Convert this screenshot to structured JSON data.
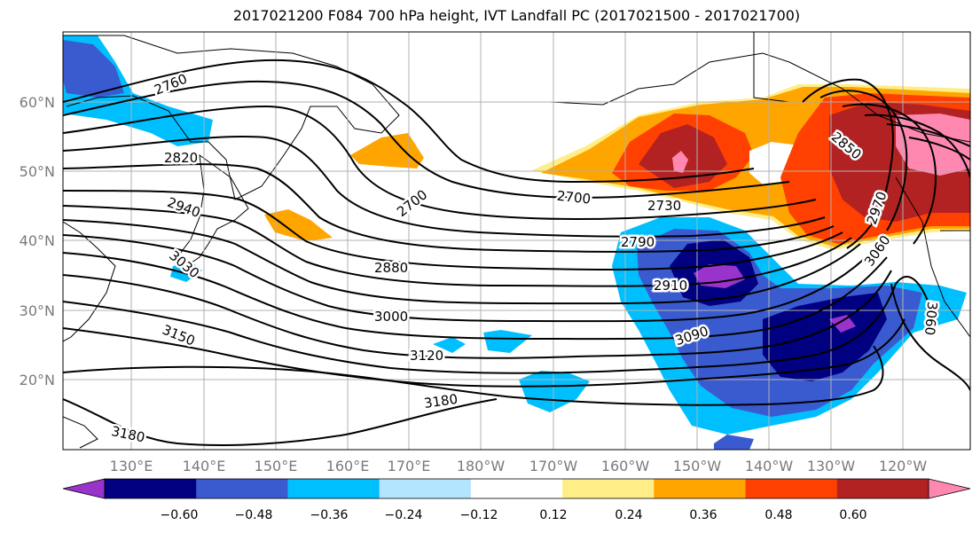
{
  "title": "2017021200 F084 700 hPa height, IVT Landfall PC (2017021500 - 2017021700)",
  "map": {
    "lat_labels": [
      "60°N",
      "50°N",
      "40°N",
      "30°N",
      "20°N"
    ],
    "lon_labels": [
      "130°E",
      "140°E",
      "150°E",
      "160°E",
      "170°E",
      "180°W",
      "170°W",
      "160°W",
      "150°W",
      "140°W",
      "130°W",
      "120°W"
    ],
    "contour_labels": [
      "2760",
      "2820",
      "2940",
      "3030",
      "2700",
      "2880",
      "3000",
      "3150",
      "3120",
      "3180",
      "3180",
      "2700",
      "2730",
      "2790",
      "2910",
      "3090",
      "3060",
      "2970",
      "2850",
      "3060"
    ]
  },
  "colorbar": {
    "colors": [
      "#9933cc",
      "#000080",
      "#3a5bd0",
      "#00bfff",
      "#b3e5ff",
      "#ffffff",
      "#ffee88",
      "#ffa500",
      "#ff4000",
      "#b22222",
      "#ff88b0"
    ],
    "tick_labels": [
      "−0.60",
      "−0.48",
      "−0.36",
      "−0.24",
      "−0.12",
      "0.12",
      "0.24",
      "0.36",
      "0.48",
      "0.60"
    ]
  }
}
